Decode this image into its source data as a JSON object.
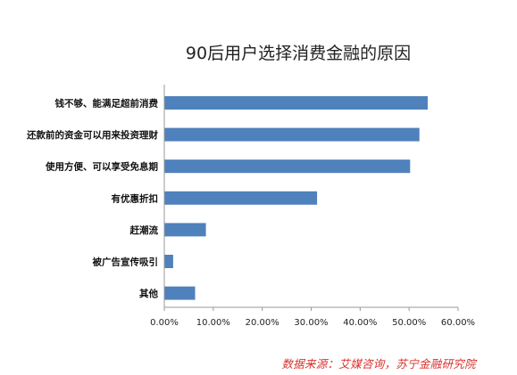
{
  "chart_data": {
    "type": "bar",
    "orientation": "horizontal",
    "title": "90后用户选择消费金融的原因",
    "categories": [
      "钱不够、能满足超前消费",
      "还款前的资金可以用来投资理财",
      "使用方便、可以享受免息期",
      "有优惠折扣",
      "赶潮流",
      "被广告宣传吸引",
      "其他"
    ],
    "values": [
      53.8,
      52.1,
      50.2,
      31.2,
      8.5,
      1.8,
      6.3
    ],
    "xlim": [
      0,
      60
    ],
    "xticks": [
      "0.00%",
      "10.00%",
      "20.00%",
      "30.00%",
      "40.00%",
      "50.00%",
      "60.00%"
    ],
    "xlabel": "",
    "ylabel": "",
    "bar_color": "#4f81bd",
    "grid": false,
    "legend": "none"
  },
  "source_note": "数据来源：艾媒咨询，苏宁金融研究院"
}
